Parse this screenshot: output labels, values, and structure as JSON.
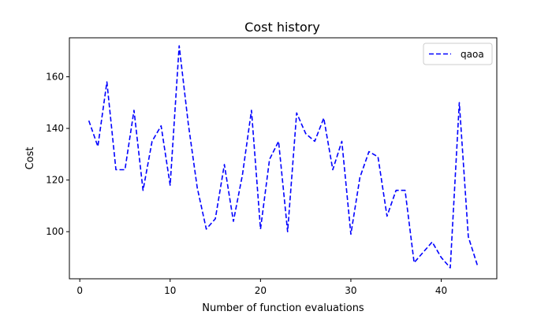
{
  "chart_data": {
    "type": "line",
    "title": "Cost history",
    "xlabel": "Number of function evaluations",
    "ylabel": "Cost",
    "xlim": [
      -1.15,
      46.15
    ],
    "ylim": [
      81.75,
      175.1
    ],
    "xticks": [
      0,
      10,
      20,
      30,
      40
    ],
    "yticks": [
      100,
      120,
      140,
      160
    ],
    "grid": false,
    "legend_position": "top-right",
    "series": [
      {
        "name": "qaoa",
        "color": "#0000ff",
        "linestyle": "dashed",
        "x": [
          1,
          2,
          3,
          4,
          5,
          6,
          7,
          8,
          9,
          10,
          11,
          12,
          13,
          14,
          15,
          16,
          17,
          18,
          19,
          20,
          21,
          22,
          23,
          24,
          25,
          26,
          27,
          28,
          29,
          30,
          31,
          32,
          33,
          34,
          35,
          36,
          37,
          38,
          39,
          40,
          41,
          42,
          43,
          44
        ],
        "y": [
          143,
          133,
          158,
          124,
          124,
          147,
          116,
          135,
          141,
          118,
          172,
          142,
          117,
          101,
          105,
          126,
          104,
          122,
          147,
          101,
          128,
          135,
          100,
          146,
          138,
          135,
          144,
          124,
          135,
          99,
          121,
          131,
          129,
          106,
          116,
          116,
          88,
          92,
          96,
          90,
          86,
          150,
          98,
          87
        ]
      }
    ]
  }
}
